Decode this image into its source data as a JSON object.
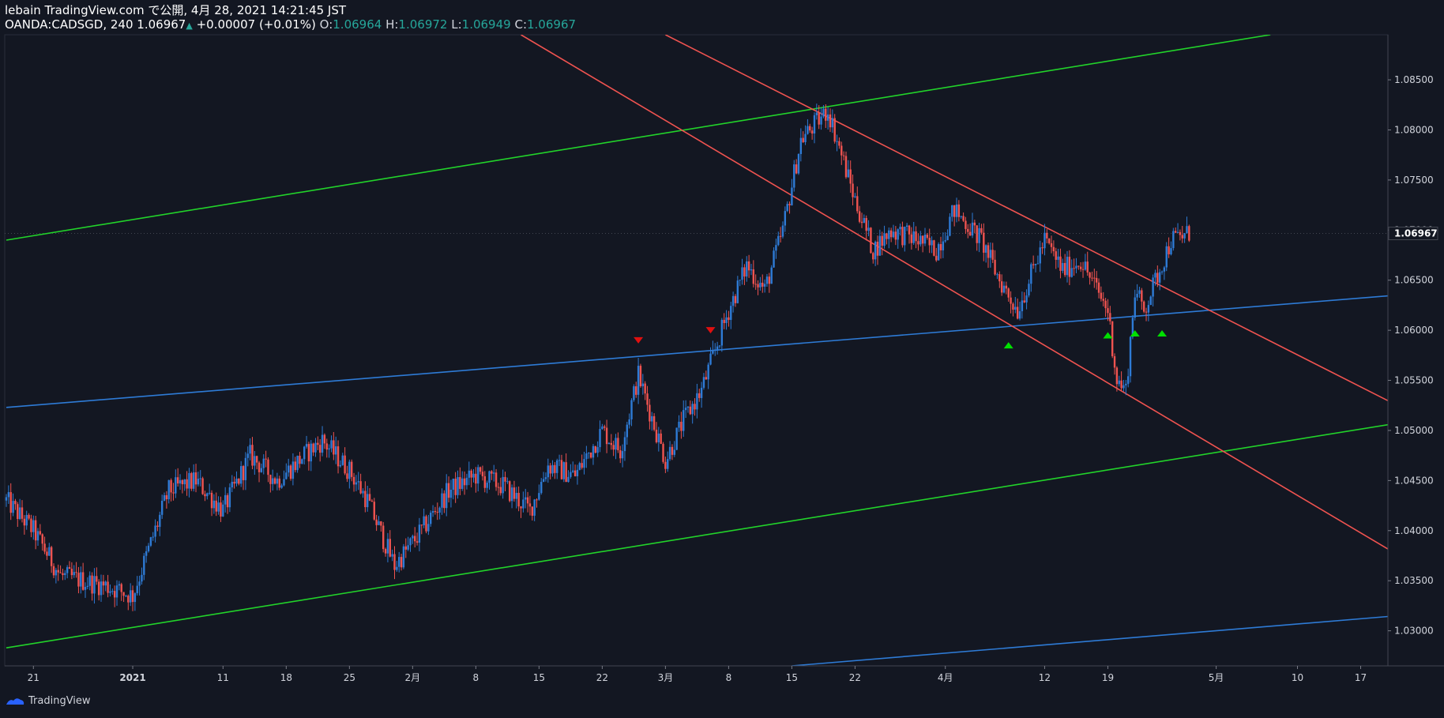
{
  "header": {
    "line1": "lebain TradingView.com で公開, 4月 28, 2021 14:21:45 JST",
    "symbol": "OANDA:CADSGD, 240",
    "last": "1.06967",
    "change": "+0.00007 (+0.01%)",
    "o_label": "O:",
    "o_value": "1.06964",
    "h_label": "H:",
    "h_value": "1.06972",
    "l_label": "L:",
    "l_value": "1.06949",
    "c_label": "C:",
    "c_value": "1.06967"
  },
  "footer": {
    "brand": "TradingView"
  },
  "colors": {
    "background": "#131722",
    "bull": "#2e7bd6",
    "bear": "#ef5350",
    "green_line": "#22d32a",
    "red_line": "#ef5350",
    "blue_line": "#2e7bd6",
    "marker_up": "#00e000",
    "marker_down": "#e01010"
  },
  "chart_data": {
    "type": "candlestick",
    "symbol": "OANDA:CADSGD",
    "timeframe": "240",
    "ylim": [
      1.0265,
      1.0895
    ],
    "y_ticks": [
      "1.03000",
      "1.03500",
      "1.04000",
      "1.04500",
      "1.05000",
      "1.05500",
      "1.06000",
      "1.06500",
      "1.07000",
      "1.07500",
      "1.08000",
      "1.08500"
    ],
    "x_ticks": [
      "21",
      "2021",
      "11",
      "18",
      "25",
      "2月",
      "8",
      "15",
      "22",
      "3月",
      "8",
      "15",
      "22",
      "4月",
      "12",
      "19",
      "5月",
      "10",
      "17"
    ],
    "last_price_label": "1.06967",
    "price_path": [
      [
        "Dec 18",
        1.043
      ],
      [
        "Dec 21",
        1.04
      ],
      [
        "Dec 24",
        1.0355
      ],
      [
        "Dec 29",
        1.0345
      ],
      [
        "Jan 1",
        1.0335
      ],
      [
        "Jan 5",
        1.044
      ],
      [
        "Jan 8",
        1.045
      ],
      [
        "Jan 11",
        1.042
      ],
      [
        "Jan 14",
        1.0475
      ],
      [
        "Jan 17",
        1.045
      ],
      [
        "Jan 20",
        1.0475
      ],
      [
        "Jan 22",
        1.049
      ],
      [
        "Jan 25",
        1.046
      ],
      [
        "Jan 27",
        1.043
      ],
      [
        "Jan 30",
        1.0365
      ],
      [
        "Feb 2",
        1.04
      ],
      [
        "Feb 5",
        1.044
      ],
      [
        "Feb 8",
        1.0455
      ],
      [
        "Feb 11",
        1.0445
      ],
      [
        "Feb 14",
        1.042
      ],
      [
        "Feb 16",
        1.0465
      ],
      [
        "Feb 19",
        1.0455
      ],
      [
        "Feb 22",
        1.05
      ],
      [
        "Feb 24",
        1.048
      ],
      [
        "Feb 26",
        1.0555
      ],
      [
        "Mar 1",
        1.047
      ],
      [
        "Mar 3",
        1.051
      ],
      [
        "Mar 5",
        1.054
      ],
      [
        "Mar 8",
        1.062
      ],
      [
        "Mar 10",
        1.0665
      ],
      [
        "Mar 12",
        1.064
      ],
      [
        "Mar 14",
        1.07
      ],
      [
        "Mar 16",
        1.079
      ],
      [
        "Mar 18",
        1.081
      ],
      [
        "Mar 19",
        1.082
      ],
      [
        "Mar 22",
        1.073
      ],
      [
        "Mar 24",
        1.068
      ],
      [
        "Mar 26",
        1.07
      ],
      [
        "Mar 29",
        1.069
      ],
      [
        "Mar 31",
        1.068
      ],
      [
        "Apr 2",
        1.072
      ],
      [
        "Apr 5",
        1.069
      ],
      [
        "Apr 7",
        1.065
      ],
      [
        "Apr 9",
        1.062
      ],
      [
        "Apr 12",
        1.069
      ],
      [
        "Apr 14",
        1.066
      ],
      [
        "Apr 16",
        1.067
      ],
      [
        "Apr 19",
        1.062
      ],
      [
        "Apr 20",
        1.055
      ],
      [
        "Apr 21",
        1.054
      ],
      [
        "Apr 22",
        1.064
      ],
      [
        "Apr 23",
        1.062
      ],
      [
        "Apr 26",
        1.069
      ],
      [
        "Apr 28",
        1.06967
      ]
    ],
    "trendlines": [
      {
        "color": "green",
        "from": [
          "Dec 18",
          1.069
        ],
        "to": [
          "May 7",
          1.0895
        ]
      },
      {
        "color": "green",
        "from": [
          "Dec 18",
          1.0283
        ],
        "to": [
          "May 25",
          1.0513
        ]
      },
      {
        "color": "blue",
        "from": [
          "Dec 18",
          1.0523
        ],
        "to": [
          "May 25",
          1.0638
        ]
      },
      {
        "color": "blue",
        "from": [
          "Mar 15",
          1.0265
        ],
        "to": [
          "May 25",
          1.0318
        ]
      },
      {
        "color": "red",
        "from": [
          "Feb 13",
          1.0895
        ],
        "to": [
          "May 25",
          1.0355
        ]
      },
      {
        "color": "red",
        "from": [
          "Mar 1",
          1.0895
        ],
        "to": [
          "May 25",
          1.0507
        ]
      }
    ],
    "markers": [
      {
        "type": "down",
        "time": "Feb 26",
        "price": 1.059
      },
      {
        "type": "down",
        "time": "Mar 6",
        "price": 1.06
      },
      {
        "type": "up",
        "time": "Apr 8",
        "price": 1.0585
      },
      {
        "type": "up",
        "time": "Apr 19",
        "price": 1.0595
      },
      {
        "type": "up",
        "time": "Apr 22",
        "price": 1.0597
      },
      {
        "type": "up",
        "time": "Apr 25",
        "price": 1.0597
      }
    ]
  }
}
